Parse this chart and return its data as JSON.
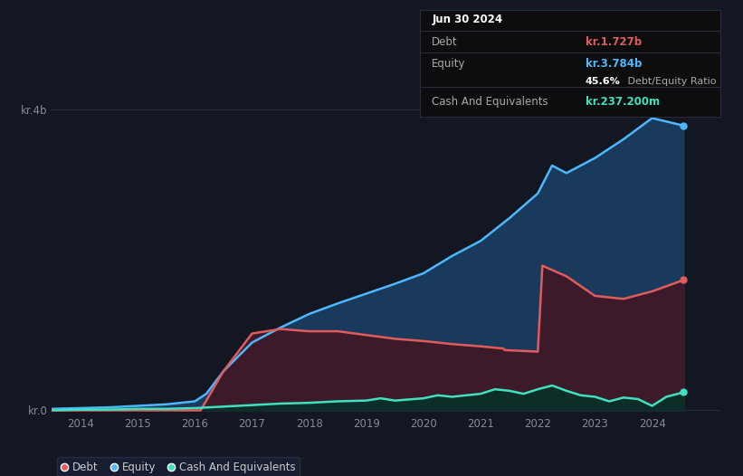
{
  "bg_color": "#131722",
  "plot_bg_color": "#131722",
  "grid_color": "#252d3d",
  "debt_color": "#e05c5c",
  "equity_color": "#4db8ff",
  "cash_color": "#40e0c0",
  "equity_fill": "#1a3a5c",
  "debt_fill": "#3d1a2a",
  "cash_fill": "#0d2d28",
  "xlim_start": 2013.5,
  "xlim_end": 2025.2,
  "ylim_min": -0.05,
  "ylim_max": 4.5,
  "xticks": [
    2014,
    2015,
    2016,
    2017,
    2018,
    2019,
    2020,
    2021,
    2022,
    2023,
    2024
  ],
  "ytick_top_label": "kr.4b",
  "ytick_bottom_label": "kr.0",
  "tooltip_date": "Jun 30 2024",
  "tooltip_debt_label": "Debt",
  "tooltip_debt_value": "kr.1.727b",
  "tooltip_equity_label": "Equity",
  "tooltip_equity_value": "kr.3.784b",
  "tooltip_ratio_bold": "45.6%",
  "tooltip_ratio_rest": " Debt/Equity Ratio",
  "tooltip_cash_label": "Cash And Equivalents",
  "tooltip_cash_value": "kr.237.200m",
  "legend_items": [
    "Debt",
    "Equity",
    "Cash And Equivalents"
  ],
  "equity_data": {
    "years": [
      2013.5,
      2014.0,
      2014.5,
      2015.0,
      2015.5,
      2016.0,
      2016.2,
      2016.5,
      2017.0,
      2017.5,
      2018.0,
      2018.25,
      2018.5,
      2019.0,
      2019.5,
      2020.0,
      2020.5,
      2021.0,
      2021.5,
      2022.0,
      2022.25,
      2022.5,
      2023.0,
      2023.5,
      2024.0,
      2024.55
    ],
    "values": [
      0.02,
      0.03,
      0.04,
      0.06,
      0.08,
      0.12,
      0.22,
      0.52,
      0.9,
      1.1,
      1.28,
      1.35,
      1.42,
      1.55,
      1.68,
      1.82,
      2.05,
      2.25,
      2.55,
      2.88,
      3.25,
      3.15,
      3.35,
      3.6,
      3.88,
      3.78
    ]
  },
  "debt_data": {
    "years": [
      2013.5,
      2014.0,
      2014.5,
      2015.0,
      2015.5,
      2016.0,
      2016.1,
      2016.5,
      2017.0,
      2017.5,
      2018.0,
      2018.5,
      2019.0,
      2019.5,
      2020.0,
      2020.5,
      2021.0,
      2021.4,
      2021.42,
      2022.0,
      2022.08,
      2022.5,
      2023.0,
      2023.5,
      2024.0,
      2024.55
    ],
    "values": [
      0.0,
      0.0,
      0.0,
      0.0,
      0.0,
      0.0,
      0.0,
      0.52,
      1.02,
      1.08,
      1.05,
      1.05,
      1.0,
      0.95,
      0.92,
      0.88,
      0.85,
      0.82,
      0.8,
      0.78,
      1.92,
      1.78,
      1.52,
      1.48,
      1.58,
      1.73
    ]
  },
  "cash_data": {
    "years": [
      2013.5,
      2014.0,
      2014.5,
      2015.0,
      2015.5,
      2016.0,
      2016.5,
      2017.0,
      2017.5,
      2018.0,
      2018.5,
      2019.0,
      2019.25,
      2019.5,
      2020.0,
      2020.25,
      2020.5,
      2021.0,
      2021.25,
      2021.5,
      2021.75,
      2022.0,
      2022.25,
      2022.5,
      2022.75,
      2023.0,
      2023.25,
      2023.5,
      2023.75,
      2024.0,
      2024.25,
      2024.55
    ],
    "values": [
      0.0,
      0.01,
      0.01,
      0.02,
      0.02,
      0.03,
      0.05,
      0.07,
      0.09,
      0.1,
      0.12,
      0.13,
      0.16,
      0.13,
      0.16,
      0.2,
      0.18,
      0.22,
      0.28,
      0.26,
      0.22,
      0.28,
      0.33,
      0.26,
      0.2,
      0.18,
      0.12,
      0.17,
      0.15,
      0.06,
      0.18,
      0.24
    ]
  }
}
